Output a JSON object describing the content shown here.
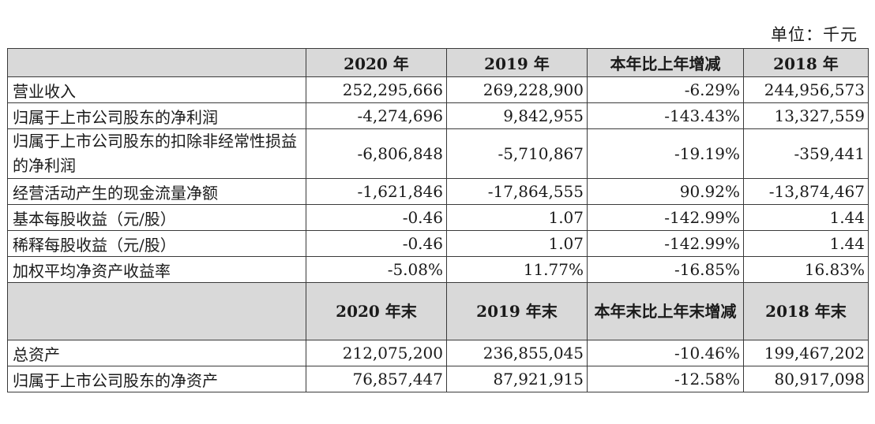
{
  "unit_label": "单位：千元",
  "header1": [
    "2020 年",
    "2019 年",
    "本年比上年增减",
    "2018 年"
  ],
  "rows1": [
    {
      "label": "营业收入",
      "values": [
        "252,295,666",
        "269,228,900",
        "-6.29%",
        "244,956,573"
      ]
    },
    {
      "label": "归属于上市公司股东的净利润",
      "values": [
        "-4,274,696",
        "9,842,955",
        "-143.43%",
        "13,327,559"
      ]
    },
    {
      "label": "归属于上市公司股东的扣除非经常性损益的净利润",
      "values": [
        "-6,806,848",
        "-5,710,867",
        "-19.19%",
        "-359,441"
      ]
    },
    {
      "label": "经营活动产生的现金流量净额",
      "values": [
        "-1,621,846",
        "-17,864,555",
        "90.92%",
        "-13,874,467"
      ]
    },
    {
      "label": "基本每股收益（元/股）",
      "values": [
        "-0.46",
        "1.07",
        "-142.99%",
        "1.44"
      ]
    },
    {
      "label": "稀释每股收益（元/股）",
      "values": [
        "-0.46",
        "1.07",
        "-142.99%",
        "1.44"
      ]
    },
    {
      "label": "加权平均净资产收益率",
      "values": [
        "-5.08%",
        "11.77%",
        "-16.85%",
        "16.83%"
      ]
    }
  ],
  "header2": [
    "2020 年末",
    "2019 年末",
    "本年末比上年末增减",
    "2018 年末"
  ],
  "rows2": [
    {
      "label": "总资产",
      "values": [
        "212,075,200",
        "236,855,045",
        "-10.46%",
        "199,467,202"
      ]
    },
    {
      "label": "归属于上市公司股东的净资产",
      "values": [
        "76,857,447",
        "87,921,915",
        "-12.58%",
        "80,917,098"
      ]
    }
  ]
}
